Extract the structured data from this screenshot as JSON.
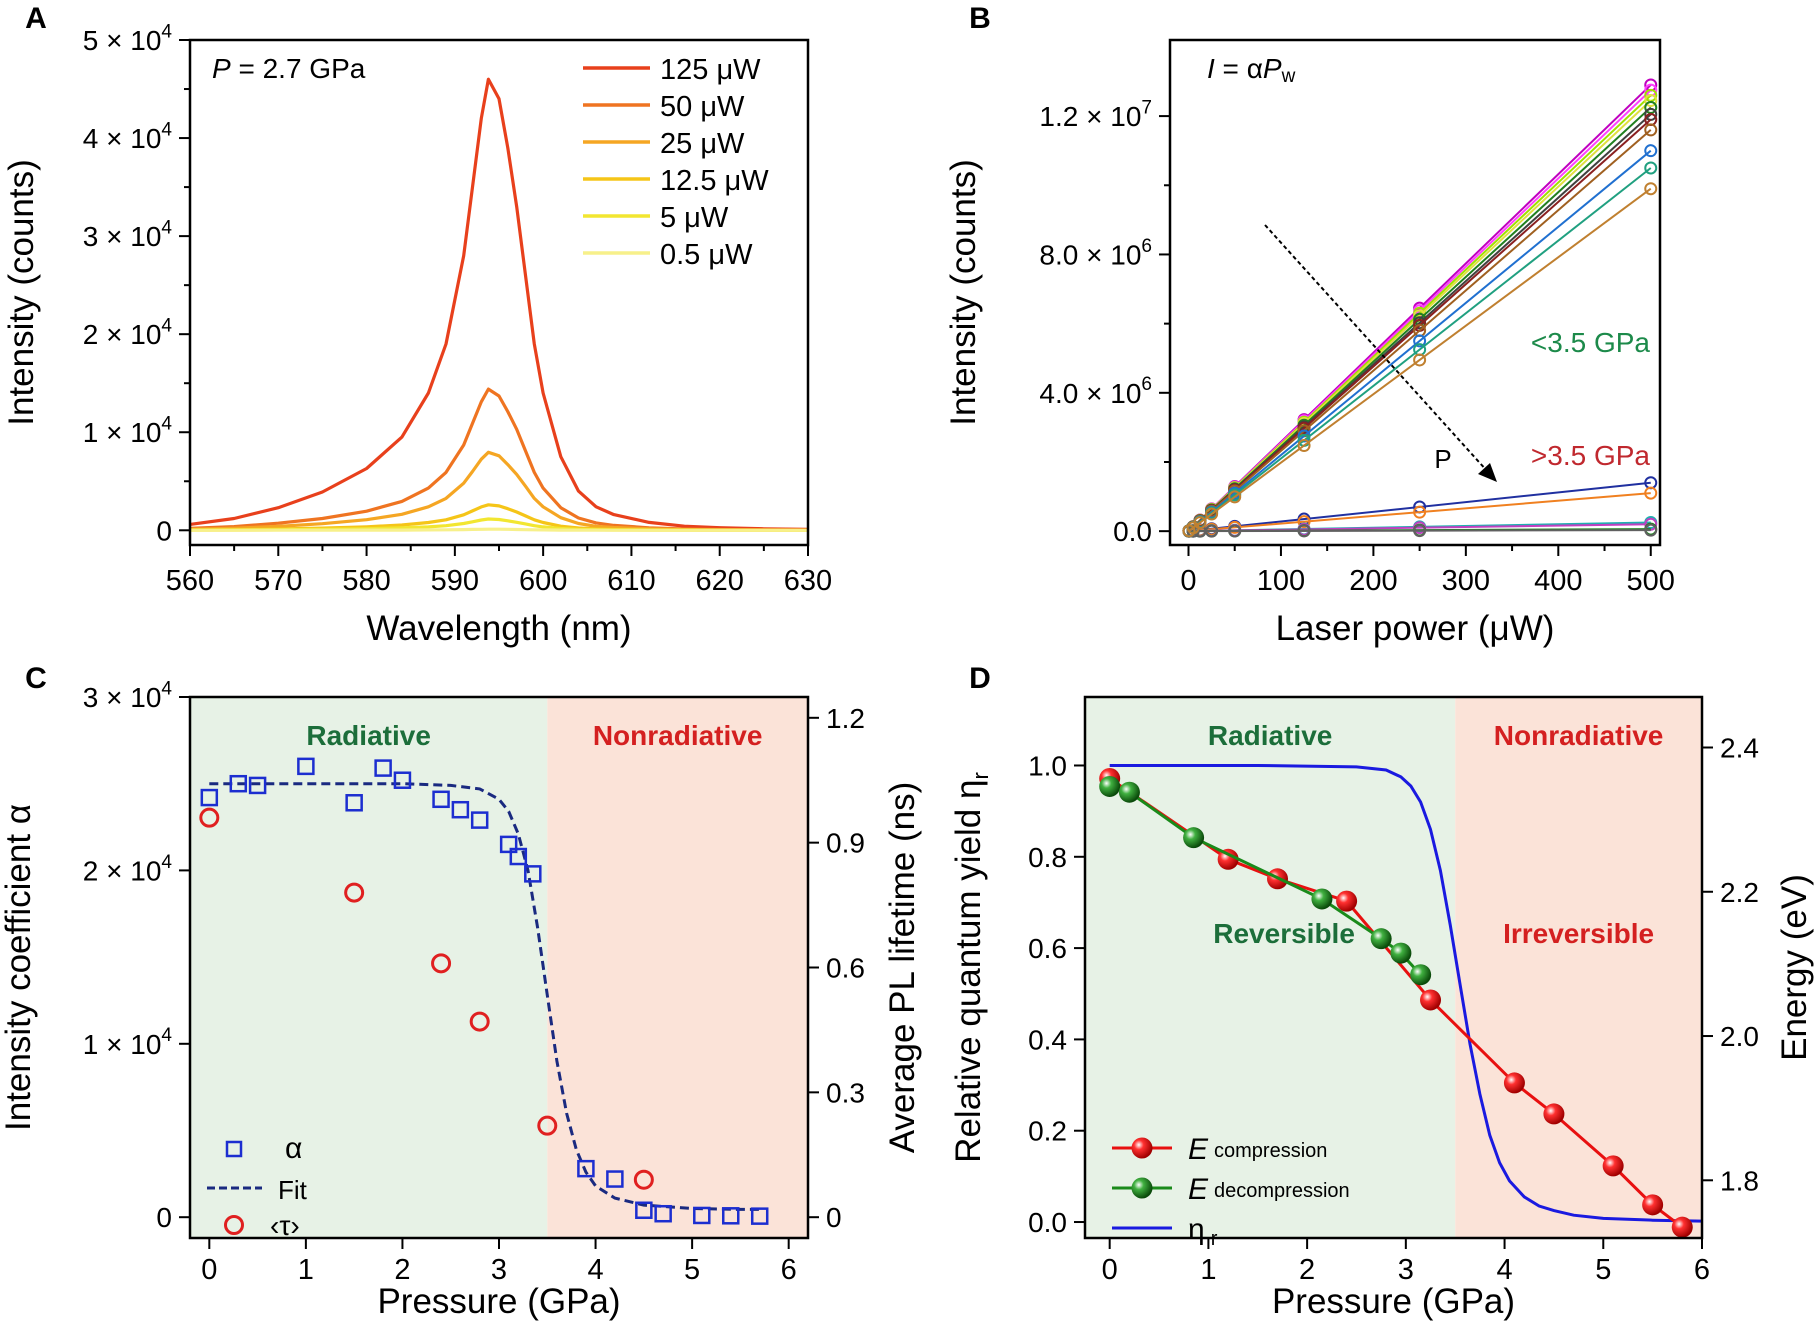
{
  "chart_data": [
    {
      "panel": "A",
      "type": "line",
      "annotation": "P = 2.7 GPa",
      "xlabel": "Wavelength (nm)",
      "ylabel": "Intensity (counts)",
      "xlim": [
        560,
        630
      ],
      "ylim": [
        -1500,
        50000
      ],
      "xticks": [
        "560",
        "570",
        "580",
        "590",
        "600",
        "610",
        "620",
        "630"
      ],
      "yticks": [
        "0",
        "1 × 10^4",
        "2 × 10^4",
        "3 × 10^4",
        "4 × 10^4",
        "5 × 10^4"
      ],
      "peak_nm": 593.8,
      "x": [
        560,
        565,
        570,
        575,
        580,
        584,
        587,
        589,
        591,
        592,
        593,
        593.8,
        595,
        596,
        597,
        598,
        599,
        600,
        602,
        604,
        606,
        608,
        612,
        616,
        620,
        625,
        630
      ],
      "series": [
        {
          "name": "125 μW",
          "color": "#e8401c",
          "values": [
            600,
            1200,
            2300,
            3900,
            6300,
            9500,
            14000,
            19000,
            28000,
            35000,
            42000,
            46000,
            44000,
            39000,
            33000,
            26000,
            19000,
            14000,
            7500,
            4000,
            2400,
            1600,
            800,
            420,
            260,
            150,
            100
          ]
        },
        {
          "name": "50 μW",
          "color": "#ef7421",
          "values": [
            190,
            380,
            720,
            1200,
            1950,
            2950,
            4300,
            5900,
            8700,
            10900,
            13100,
            14400,
            13700,
            12100,
            10300,
            8100,
            5900,
            4300,
            2300,
            1250,
            750,
            500,
            250,
            130,
            80,
            50,
            30
          ]
        },
        {
          "name": "25 μW",
          "color": "#f5a623",
          "values": [
            100,
            210,
            400,
            670,
            1080,
            1630,
            2400,
            3250,
            4800,
            6000,
            7250,
            7950,
            7600,
            6700,
            5700,
            4500,
            3250,
            2400,
            1280,
            690,
            410,
            280,
            140,
            70,
            45,
            25,
            15
          ]
        },
        {
          "name": "12.5 μW",
          "color": "#f5c518",
          "values": [
            35,
            70,
            130,
            220,
            360,
            540,
            790,
            1070,
            1580,
            1980,
            2390,
            2600,
            2490,
            2200,
            1870,
            1470,
            1070,
            790,
            420,
            230,
            140,
            90,
            45,
            25,
            15,
            10,
            5
          ]
        },
        {
          "name": "5 μW",
          "color": "#f2e630",
          "values": [
            15,
            30,
            60,
            100,
            160,
            240,
            350,
            470,
            690,
            870,
            1050,
            1150,
            1100,
            970,
            820,
            650,
            470,
            350,
            185,
            100,
            60,
            40,
            20,
            10,
            8,
            5,
            3
          ]
        },
        {
          "name": "0.5 μW",
          "color": "#f7f08a",
          "values": [
            2,
            3,
            6,
            10,
            16,
            24,
            35,
            47,
            69,
            87,
            105,
            115,
            110,
            97,
            82,
            65,
            47,
            35,
            18,
            10,
            6,
            4,
            2,
            1,
            1,
            0,
            0
          ]
        }
      ]
    },
    {
      "panel": "B",
      "type": "scatter",
      "annotation": "I = αPw",
      "xlabel": "Laser power (μW)",
      "ylabel": "Intensity (counts)",
      "xlim": [
        -20,
        510
      ],
      "ylim": [
        -400000,
        14200000
      ],
      "xticks": [
        "0",
        "100",
        "200",
        "300",
        "400",
        "500"
      ],
      "yticks": [
        "0.0",
        "4.0 × 10^6",
        "8.0 × 10^6",
        "1.2 × 10^7"
      ],
      "x": [
        0.5,
        5,
        12.5,
        25,
        50,
        125,
        250,
        500
      ],
      "label_low": "<3.5 GPa",
      "label_high": ">3.5 GPa",
      "arrow_label": "P",
      "low_colors": [
        "#c000c0",
        "#ff40ff",
        "#a0e000",
        "#e0e040",
        "#208020",
        "#404040",
        "#8a2020",
        "#a06020",
        "#2070d0",
        "#20a080",
        "#c08030"
      ],
      "low_slopes": [
        25800,
        25500,
        25200,
        24900,
        24500,
        24100,
        23800,
        23200,
        22000,
        21000,
        19800
      ],
      "high_colors": [
        "#2030a0",
        "#f08020",
        "#20b0b0",
        "#c040c0",
        "#208020",
        "#606060"
      ],
      "high_slopes": [
        2800,
        2200,
        500,
        400,
        120,
        60
      ]
    },
    {
      "panel": "C",
      "type": "scatter",
      "region_left": "Radiative",
      "region_right": "Nonradiative",
      "boundary": 3.5,
      "xlabel": "Pressure (GPa)",
      "ylabel": "Intensity coefficient α",
      "ylabel_right": "Average PL lifetime (ns)",
      "xlim": [
        -0.2,
        6.2
      ],
      "ylim": [
        -1200,
        30000
      ],
      "ylim_right": [
        -0.05,
        1.25
      ],
      "xticks": [
        "0",
        "1",
        "2",
        "3",
        "4",
        "5",
        "6"
      ],
      "yticks": [
        "0",
        "1 × 10^4",
        "2 × 10^4",
        "3 × 10^4"
      ],
      "yticks_right": [
        "0",
        "0.3",
        "0.6",
        "0.9",
        "1.2"
      ],
      "legend": [
        "α",
        "Fit",
        "‹τ›"
      ],
      "alpha": {
        "x": [
          0,
          0.3,
          0.5,
          1.0,
          1.5,
          1.8,
          2.0,
          2.4,
          2.6,
          2.8,
          3.1,
          3.2,
          3.35,
          3.9,
          4.2,
          4.5,
          4.7,
          5.1,
          5.4,
          5.7
        ],
        "y": [
          24200,
          25000,
          24900,
          26000,
          23900,
          25900,
          25200,
          24100,
          23500,
          22900,
          21500,
          20800,
          19800,
          2800,
          2200,
          400,
          200,
          100,
          80,
          60
        ]
      },
      "fit": {
        "x": [
          0,
          0.5,
          1,
          1.5,
          2,
          2.5,
          2.8,
          3.0,
          3.1,
          3.2,
          3.3,
          3.4,
          3.5,
          3.6,
          3.7,
          3.8,
          3.9,
          4.0,
          4.2,
          4.5,
          5,
          5.5,
          5.7
        ],
        "y": [
          25000,
          25000,
          25000,
          25000,
          25000,
          24900,
          24700,
          24100,
          23400,
          22100,
          20000,
          16700,
          12800,
          9000,
          6000,
          3900,
          2600,
          1800,
          1100,
          700,
          500,
          450,
          450
        ]
      },
      "tau": {
        "x": [
          0,
          1.5,
          2.4,
          2.8,
          3.5,
          4.5
        ],
        "y": [
          0.96,
          0.78,
          0.61,
          0.47,
          0.22,
          0.09
        ]
      }
    },
    {
      "panel": "D",
      "type": "line",
      "region_left": "Radiative",
      "region_right": "Nonradiative",
      "sub_left": "Reversible",
      "sub_right": "Irreversible",
      "boundary": 3.5,
      "xlabel": "Pressure (GPa)",
      "ylabel": "Relative quantum yield η",
      "ylabel_sub": "r",
      "ylabel_right": "Energy (eV)",
      "xlim": [
        -0.25,
        6.0
      ],
      "ylim": [
        -0.035,
        1.15
      ],
      "ylim_right": [
        1.72,
        2.47
      ],
      "xticks": [
        "0",
        "1",
        "2",
        "3",
        "4",
        "5",
        "6"
      ],
      "yticks": [
        "0.0",
        "0.2",
        "0.4",
        "0.6",
        "0.8",
        "1.0"
      ],
      "yticks_right": [
        "1.8",
        "2.0",
        "2.2",
        "2.4"
      ],
      "legend": [
        {
          "text": "E",
          "sub": "compression"
        },
        {
          "text": "E",
          "sub": "decompression"
        },
        {
          "text": "η",
          "sub": "r"
        }
      ],
      "compression": {
        "x": [
          0,
          1.2,
          1.7,
          2.4,
          3.25,
          4.1,
          4.5,
          5.1,
          5.5,
          5.8
        ],
        "y": [
          2.357,
          2.245,
          2.218,
          2.187,
          2.05,
          1.935,
          1.892,
          1.82,
          1.766,
          1.735
        ]
      },
      "decompression": {
        "x": [
          0,
          0.2,
          0.85,
          2.15,
          2.75,
          2.95,
          3.15
        ],
        "y": [
          2.346,
          2.338,
          2.275,
          2.19,
          2.135,
          2.115,
          2.085
        ]
      },
      "eta": {
        "x": [
          0,
          1.5,
          2.5,
          2.8,
          2.95,
          3.05,
          3.15,
          3.25,
          3.35,
          3.45,
          3.55,
          3.65,
          3.75,
          3.85,
          3.95,
          4.05,
          4.2,
          4.35,
          4.5,
          4.7,
          5,
          5.5,
          6.0
        ],
        "y": [
          1.0,
          1.0,
          0.997,
          0.99,
          0.975,
          0.955,
          0.92,
          0.86,
          0.77,
          0.65,
          0.52,
          0.39,
          0.28,
          0.19,
          0.13,
          0.09,
          0.055,
          0.035,
          0.025,
          0.015,
          0.008,
          0.004,
          0.002
        ]
      }
    }
  ]
}
